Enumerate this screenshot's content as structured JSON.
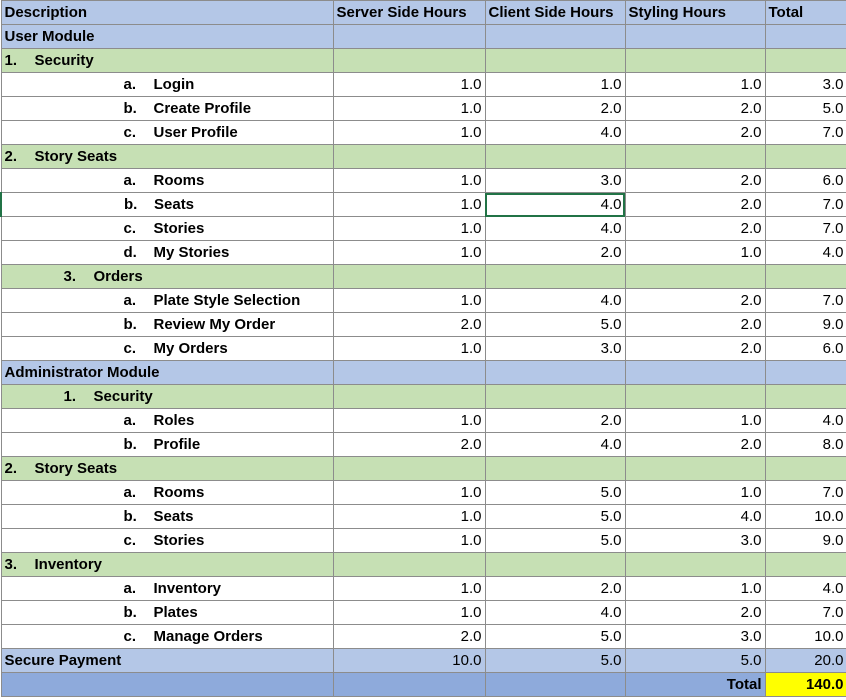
{
  "header": {
    "description": "Description",
    "server": "Server Side Hours",
    "client": "Client Side Hours",
    "styling": "Styling Hours",
    "total": "Total"
  },
  "rows": [
    {
      "type": "module",
      "label": "User Module"
    },
    {
      "type": "section",
      "marker": "1.",
      "label": "Security"
    },
    {
      "type": "item",
      "marker": "a.",
      "label": "Login",
      "server": "1.0",
      "client": "1.0",
      "styling": "1.0",
      "total": "3.0"
    },
    {
      "type": "item",
      "marker": "b.",
      "label": "Create Profile",
      "server": "1.0",
      "client": "2.0",
      "styling": "2.0",
      "total": "5.0"
    },
    {
      "type": "item",
      "marker": "c.",
      "label": "User Profile",
      "server": "1.0",
      "client": "4.0",
      "styling": "2.0",
      "total": "7.0"
    },
    {
      "type": "section",
      "marker": "2.",
      "label": "Story Seats"
    },
    {
      "type": "item",
      "marker": "a.",
      "label": "Rooms",
      "server": "1.0",
      "client": "3.0",
      "styling": "2.0",
      "total": "6.0"
    },
    {
      "type": "item",
      "marker": "b.",
      "label": "Seats",
      "server": "1.0",
      "client": "4.0",
      "styling": "2.0",
      "total": "7.0",
      "selected": true
    },
    {
      "type": "item",
      "marker": "c.",
      "label": "Stories",
      "server": "1.0",
      "client": "4.0",
      "styling": "2.0",
      "total": "7.0"
    },
    {
      "type": "item",
      "marker": "d.",
      "label": "My Stories",
      "server": "1.0",
      "client": "2.0",
      "styling": "1.0",
      "total": "4.0"
    },
    {
      "type": "section",
      "marker": "3.",
      "label": "Orders",
      "indent": true
    },
    {
      "type": "item",
      "marker": "a.",
      "label": "Plate Style Selection",
      "server": "1.0",
      "client": "4.0",
      "styling": "2.0",
      "total": "7.0"
    },
    {
      "type": "item",
      "marker": "b.",
      "label": "Review My Order",
      "server": "2.0",
      "client": "5.0",
      "styling": "2.0",
      "total": "9.0"
    },
    {
      "type": "item",
      "marker": "c.",
      "label": "My Orders",
      "server": "1.0",
      "client": "3.0",
      "styling": "2.0",
      "total": "6.0"
    },
    {
      "type": "module",
      "label": "Administrator Module"
    },
    {
      "type": "section",
      "marker": "1.",
      "label": "Security",
      "indent": true
    },
    {
      "type": "item",
      "marker": "a.",
      "label": "Roles",
      "server": "1.0",
      "client": "2.0",
      "styling": "1.0",
      "total": "4.0"
    },
    {
      "type": "item",
      "marker": "b.",
      "label": "Profile",
      "server": "2.0",
      "client": "4.0",
      "styling": "2.0",
      "total": "8.0"
    },
    {
      "type": "section",
      "marker": "2.",
      "label": "Story Seats"
    },
    {
      "type": "item",
      "marker": "a.",
      "label": "Rooms",
      "server": "1.0",
      "client": "5.0",
      "styling": "1.0",
      "total": "7.0"
    },
    {
      "type": "item",
      "marker": "b.",
      "label": "Seats",
      "server": "1.0",
      "client": "5.0",
      "styling": "4.0",
      "total": "10.0"
    },
    {
      "type": "item",
      "marker": "c.",
      "label": "Stories",
      "server": "1.0",
      "client": "5.0",
      "styling": "3.0",
      "total": "9.0"
    },
    {
      "type": "section",
      "marker": "3.",
      "label": "Inventory"
    },
    {
      "type": "item",
      "marker": "a.",
      "label": "Inventory",
      "server": "1.0",
      "client": "2.0",
      "styling": "1.0",
      "total": "4.0"
    },
    {
      "type": "item",
      "marker": "b.",
      "label": "Plates",
      "server": "1.0",
      "client": "4.0",
      "styling": "2.0",
      "total": "7.0"
    },
    {
      "type": "item",
      "marker": "c.",
      "label": "Manage Orders",
      "server": "2.0",
      "client": "5.0",
      "styling": "3.0",
      "total": "10.0"
    },
    {
      "type": "payment",
      "label": "Secure Payment",
      "server": "10.0",
      "client": "5.0",
      "styling": "5.0",
      "total": "20.0"
    }
  ],
  "footer": {
    "total_label": "Total",
    "total_value": "140.0"
  }
}
